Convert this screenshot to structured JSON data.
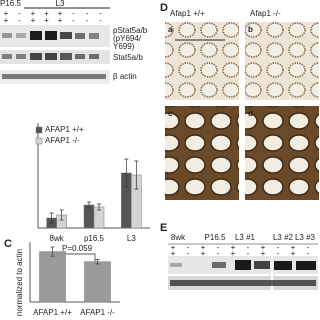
{
  "figure": {
    "panel_letters": [
      "C",
      "D",
      "E"
    ],
    "blot_a": {
      "stages": [
        "P16.5",
        "L3"
      ],
      "lanes": [
        [
          "+",
          "+"
        ],
        [
          "-",
          "-"
        ],
        [
          "+",
          "+"
        ],
        [
          "+",
          "+"
        ],
        [
          "+",
          "+"
        ],
        [
          "-",
          "-"
        ],
        [
          "-",
          "-"
        ],
        [
          "-",
          "-"
        ]
      ],
      "band_labels": [
        "pStat5a/b",
        "(pY694/",
        "Y699)",
        "Stat5a/b",
        "β actin"
      ]
    },
    "micrographs": {
      "genotypes": [
        "Afap1 +/+",
        "Afap1 -/-"
      ],
      "sublabels": [
        "a",
        "b",
        "c",
        "d"
      ]
    },
    "blot_e": {
      "stages": [
        "8wk",
        "P16.5",
        "L3 #1",
        "L3 #2",
        "L3 #3"
      ],
      "lanes": [
        [
          "+",
          "+"
        ],
        [
          "-",
          "-"
        ],
        [
          "+",
          "+"
        ],
        [
          "-",
          "-"
        ],
        [
          "+",
          "+"
        ],
        [
          "-",
          "-"
        ],
        [
          "+",
          "+"
        ],
        [
          "-",
          "-"
        ],
        [
          "+",
          "+"
        ],
        [
          "-",
          "-"
        ]
      ]
    }
  },
  "chart_data": [
    {
      "type": "bar",
      "categories": [
        "8wk",
        "p16.5",
        "L3"
      ],
      "series": [
        {
          "name": "AFAP1 +/+",
          "color": "#555555",
          "values": [
            1.0,
            2.3,
            5.5
          ],
          "errors": [
            0.5,
            0.3,
            1.4
          ]
        },
        {
          "name": "AFAP1 -/-",
          "color": "#d4d4d4",
          "values": [
            1.3,
            2.1,
            5.3
          ],
          "errors": [
            0.5,
            0.3,
            1.4
          ]
        }
      ],
      "ylim": [
        0,
        10
      ]
    },
    {
      "type": "bar",
      "categories": [
        "AFAP1 +/+",
        "AFAP1 -/-"
      ],
      "y_label": "normalized to actin",
      "annotation": "P=0.059",
      "series": [
        {
          "color": "#9a9a9a",
          "values": [
            1.1,
            0.88
          ],
          "errors": [
            0.1,
            0.05
          ]
        }
      ],
      "ylim": [
        0,
        1.2
      ]
    }
  ]
}
